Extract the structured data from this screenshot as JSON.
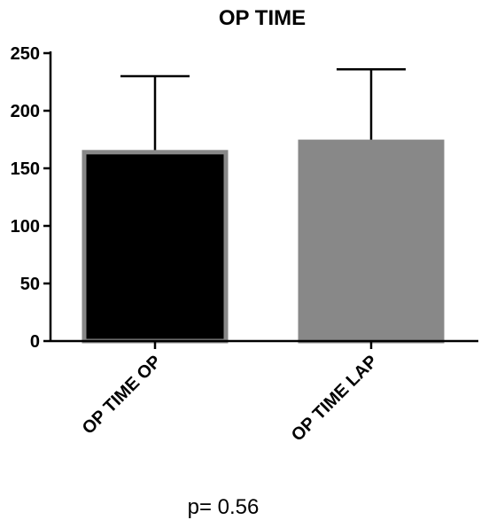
{
  "chart_data": {
    "type": "bar",
    "title": "OP TIME",
    "xlabel": "",
    "ylabel": "",
    "categories": [
      "OP TIME OP",
      "OP TIME LAP"
    ],
    "values": [
      164,
      173
    ],
    "error_upper": [
      230,
      236
    ],
    "bar_fill_colors": [
      "#000000",
      "#888888"
    ],
    "bar_edge_color": "#888888",
    "ylim": [
      0,
      250
    ],
    "yticks": [
      0,
      50,
      100,
      150,
      200,
      250
    ],
    "ytick_labels": [
      "0",
      "50",
      "100",
      "150",
      "200",
      "250"
    ],
    "grid": false,
    "annotation": "p= 0.56"
  }
}
